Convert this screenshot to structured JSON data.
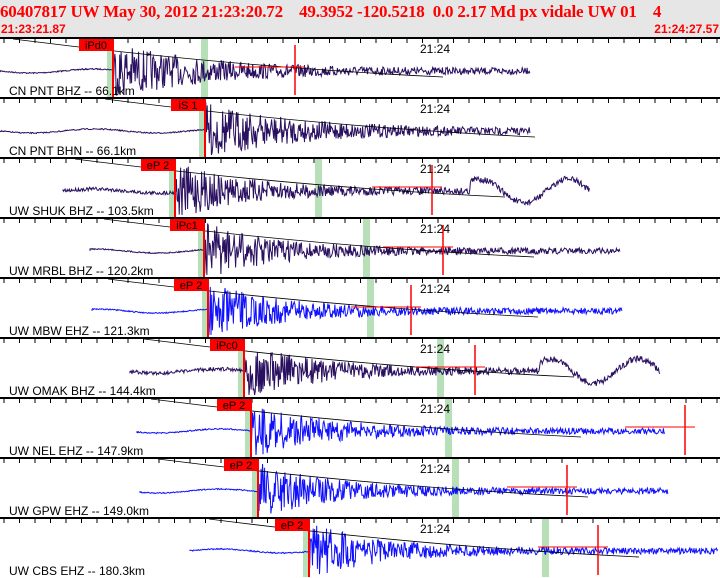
{
  "header": {
    "title": "60407817 UW May 30, 2012 21:23:20.72    49.3952 -120.5218  0.0 2.17 Md px vidale UW 01    4",
    "start_time": "21:23:21.87",
    "end_time": "21:24:27.57",
    "minute_label": "21:24"
  },
  "colors": {
    "text": "#ff0000",
    "broadband_trace": "#2a1060",
    "short_period_trace": "#1010ff",
    "pick": "#ff0000",
    "window": "#b8e0b8"
  },
  "traces": [
    {
      "label": "CN PNT BHZ -- 66.1km",
      "pick": "iPd0",
      "type": "broadband"
    },
    {
      "label": "CN PNT BHN -- 66.1km",
      "pick": "iS 1",
      "type": "broadband"
    },
    {
      "label": "UW SHUK BHZ -- 103.5km",
      "pick": "eP 2",
      "type": "broadband"
    },
    {
      "label": "UW MRBL BHZ -- 120.2km",
      "pick": "iPc1",
      "type": "broadband"
    },
    {
      "label": "UW MBW EHZ -- 121.3km",
      "pick": "eP 2",
      "type": "short_period"
    },
    {
      "label": "UW OMAK BHZ -- 144.4km",
      "pick": "iPc0",
      "type": "broadband"
    },
    {
      "label": "UW NEL EHZ -- 147.9km",
      "pick": "eP 2",
      "type": "short_period"
    },
    {
      "label": "UW GPW EHZ -- 149.0km",
      "pick": "eP 2",
      "type": "short_period"
    },
    {
      "label": "UW CBS EHZ -- 180.3km",
      "pick": "eP 2",
      "type": "short_period"
    }
  ]
}
